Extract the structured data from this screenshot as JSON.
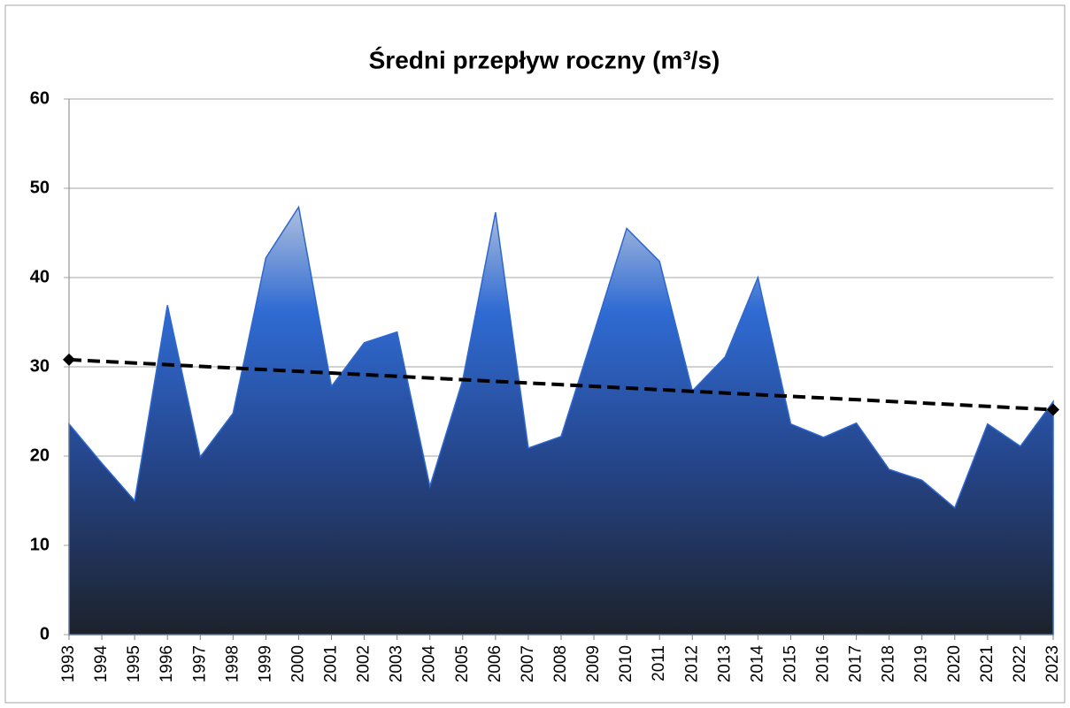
{
  "chart_data": {
    "type": "area",
    "title": "Średni przepływ roczny (m³/s)",
    "categories": [
      "1993",
      "1994",
      "1995",
      "1996",
      "1997",
      "1998",
      "1999",
      "2000",
      "2001",
      "2002",
      "2003",
      "2004",
      "2005",
      "2006",
      "2007",
      "2008",
      "2009",
      "2010",
      "2011",
      "2012",
      "2013",
      "2014",
      "2015",
      "2016",
      "2017",
      "2018",
      "2019",
      "2020",
      "2021",
      "2022",
      "2023"
    ],
    "values": [
      23.6,
      19.2,
      15.0,
      36.9,
      19.9,
      24.8,
      42.2,
      47.9,
      27.8,
      32.7,
      33.9,
      16.6,
      28.5,
      47.3,
      20.9,
      22.2,
      33.8,
      45.5,
      41.8,
      27.3,
      31.1,
      40.0,
      23.6,
      22.1,
      23.7,
      18.5,
      17.3,
      14.2,
      23.6,
      21.1,
      26.1
    ],
    "color": "#2d67d0",
    "trendline": {
      "values": [
        30.8,
        25.2
      ],
      "color": "#000000"
    },
    "ylim": [
      0,
      60
    ],
    "yticks": [
      0,
      10,
      20,
      30,
      40,
      50,
      60
    ],
    "grid": true
  }
}
